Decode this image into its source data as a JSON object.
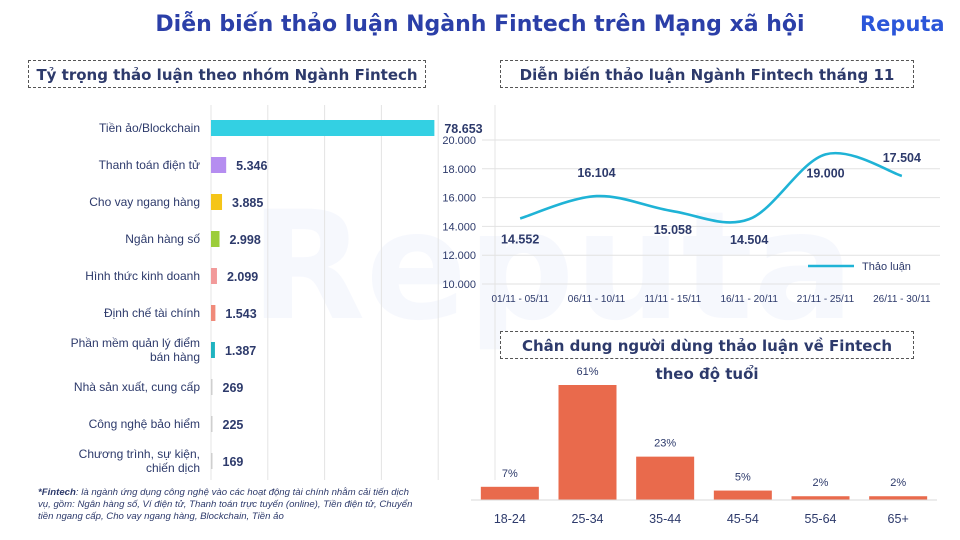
{
  "header": {
    "title": "Diễn biến thảo luận Ngành Fintech trên Mạng xã hội",
    "logo": "Reputa"
  },
  "watermark": "Reputa",
  "sections": {
    "left_title": "Tỷ trọng thảo luận theo nhóm Ngành Fintech",
    "top_right_title": "Diễn biến thảo luận Ngành Fintech tháng 11",
    "bottom_right_title": "Chân dung người dùng thảo luận về Fintech theo độ tuổi"
  },
  "footnote": {
    "term": "*Fintech",
    "text": ": là ngành ứng dụng công nghệ vào các hoạt động tài chính nhằm cải tiến dịch vụ, gồm: Ngân hàng số, Ví điện tử, Thanh toán trực tuyến (online), Tiền điện tử, Chuyển tiền ngang cấp, Cho vay ngang hàng, Blockchain, Tiền ảo"
  },
  "colors": {
    "title": "#2b3fa8",
    "text": "#2d3a6b",
    "line": "#1fb3d6",
    "age_bar": "#e96a4c"
  },
  "chart_data": [
    {
      "type": "bar",
      "orientation": "horizontal",
      "categories": [
        "Tiền ảo/Blockchain",
        "Thanh toán điện tử",
        "Cho vay ngang hàng",
        "Ngân hàng số",
        "Hình thức kinh doanh",
        "Định chế tài chính",
        "Phần mềm quản lý điểm bán hàng",
        "Nhà sản xuất, cung cấp",
        "Công nghệ bảo hiểm",
        "Chương trình, sự kiện, chiến dịch"
      ],
      "values": [
        78653,
        5346,
        3885,
        2998,
        2099,
        1543,
        1387,
        269,
        225,
        169
      ],
      "labels": [
        "78.653",
        "5.346",
        "3.885",
        "2.998",
        "2.099",
        "1.543",
        "1.387",
        "269",
        "225",
        "169"
      ],
      "bar_colors": [
        "#33d0e3",
        "#b58df0",
        "#f5c518",
        "#9ccd3a",
        "#f29a9a",
        "#f08a7a",
        "#1fb3c0",
        "#cfcfcf",
        "#cfcfcf",
        "#cfcfcf"
      ],
      "xlim": [
        0,
        100000
      ],
      "grid": true
    },
    {
      "type": "line",
      "x": [
        "01/11 - 05/11",
        "06/11 - 10/11",
        "11/11 - 15/11",
        "16/11 - 20/11",
        "21/11 - 25/11",
        "26/11 - 30/11"
      ],
      "series": [
        {
          "name": "Thảo luận",
          "values": [
            14552,
            16104,
            15058,
            14504,
            19000,
            17504
          ],
          "labels": [
            "14.552",
            "16.104",
            "15.058",
            "14.504",
            "19.000",
            "17.504"
          ]
        }
      ],
      "y_ticks": [
        "10.000",
        "12.000",
        "14.000",
        "16.000",
        "18.000",
        "20.000"
      ],
      "ylim": [
        10000,
        20000
      ],
      "grid": true,
      "legend": "bottom-right"
    },
    {
      "type": "bar",
      "categories": [
        "18-24",
        "25-34",
        "35-44",
        "45-54",
        "55-64",
        "65+"
      ],
      "values": [
        7,
        61,
        23,
        5,
        2,
        2
      ],
      "labels": [
        "7%",
        "61%",
        "23%",
        "5%",
        "2%",
        "2%"
      ],
      "unit": "%"
    }
  ]
}
